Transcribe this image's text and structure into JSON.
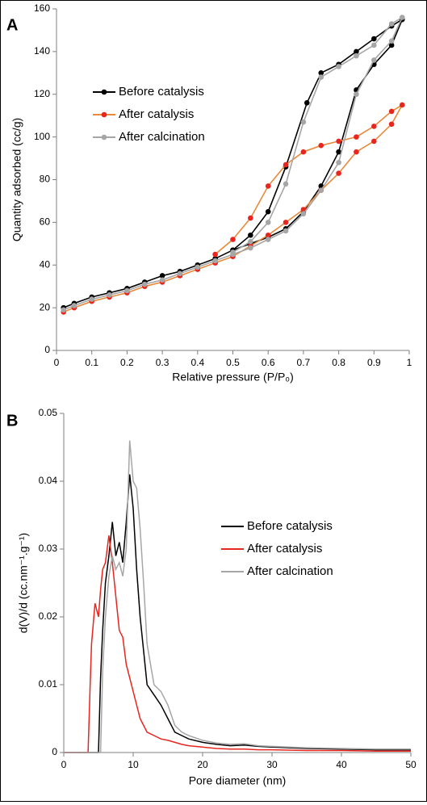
{
  "chart_data": [
    {
      "type": "line",
      "panel_label": "A",
      "xlabel": "Relative pressure (P/P₀)",
      "ylabel": "Quantity adsorbed (cc/g)",
      "xlim": [
        0,
        1
      ],
      "xticks": [
        0,
        0.1,
        0.2,
        0.3,
        0.4,
        0.5,
        0.6,
        0.7,
        0.8,
        0.9,
        1
      ],
      "ylim": [
        0,
        160
      ],
      "yticks": [
        0,
        20,
        40,
        60,
        80,
        100,
        120,
        140,
        160
      ],
      "markers": true,
      "legend": "upper left",
      "series": [
        {
          "name": "Before catalysis",
          "color": "#000000",
          "x": [
            0.02,
            0.05,
            0.1,
            0.15,
            0.2,
            0.25,
            0.3,
            0.35,
            0.4,
            0.45,
            0.5,
            0.55,
            0.6,
            0.65,
            0.7,
            0.75,
            0.8,
            0.85,
            0.9,
            0.95,
            0.98,
            0.95,
            0.9,
            0.85,
            0.8,
            0.75,
            0.71,
            0.65,
            0.6,
            0.55,
            0.5
          ],
          "values": [
            20,
            22,
            25,
            27,
            29,
            32,
            35,
            37,
            40,
            43,
            47,
            50,
            53,
            57,
            65,
            77,
            93,
            122,
            134,
            143,
            155,
            152,
            146,
            140,
            134,
            130,
            116,
            86,
            65,
            54,
            47
          ]
        },
        {
          "name": "After catalysis",
          "color": "#e8251f",
          "line_color": "#e8893a",
          "x": [
            0.02,
            0.05,
            0.1,
            0.15,
            0.2,
            0.25,
            0.3,
            0.35,
            0.4,
            0.45,
            0.5,
            0.55,
            0.6,
            0.65,
            0.7,
            0.75,
            0.8,
            0.85,
            0.9,
            0.95,
            0.98,
            0.95,
            0.9,
            0.85,
            0.8,
            0.75,
            0.7,
            0.65,
            0.6,
            0.55,
            0.5,
            0.45
          ],
          "values": [
            18,
            20,
            23,
            25,
            27,
            30,
            32,
            35,
            38,
            41,
            44,
            49,
            54,
            60,
            66,
            75,
            83,
            93,
            98,
            106,
            115,
            112,
            105,
            100,
            98,
            96,
            93,
            87,
            77,
            62,
            52,
            45
          ]
        },
        {
          "name": "After calcination",
          "color": "#a6a6a6",
          "x": [
            0.02,
            0.05,
            0.1,
            0.15,
            0.2,
            0.25,
            0.3,
            0.35,
            0.4,
            0.45,
            0.5,
            0.55,
            0.6,
            0.65,
            0.7,
            0.75,
            0.8,
            0.85,
            0.9,
            0.95,
            0.98,
            0.95,
            0.9,
            0.85,
            0.8,
            0.75,
            0.7,
            0.65,
            0.6,
            0.55,
            0.5
          ],
          "values": [
            19,
            21,
            24,
            26,
            28,
            31,
            33,
            36,
            39,
            42,
            45,
            48,
            52,
            56,
            64,
            75,
            88,
            120,
            136,
            145,
            156,
            153,
            143,
            138,
            133,
            128,
            107,
            78,
            60,
            51,
            46
          ]
        }
      ]
    },
    {
      "type": "line",
      "panel_label": "B",
      "xlabel": "Pore diameter (nm)",
      "ylabel": "d(V)/d (cc.nm⁻¹.g⁻¹)",
      "xlim": [
        0,
        50
      ],
      "xticks": [
        0,
        10,
        20,
        30,
        40,
        50
      ],
      "ylim": [
        0,
        0.05
      ],
      "yticks": [
        0,
        0.01,
        0.02,
        0.03,
        0.04,
        0.05
      ],
      "markers": false,
      "legend": "center right",
      "series": [
        {
          "name": "Before catalysis",
          "color": "#000000",
          "x": [
            0,
            3.5,
            3.8,
            4,
            4.5,
            5,
            5.3,
            5.6,
            6,
            6.5,
            7,
            7.5,
            8,
            8.5,
            9,
            9.5,
            10,
            10.5,
            11,
            11.5,
            12,
            13,
            14,
            15,
            16,
            17,
            18,
            20,
            22,
            24,
            26,
            28,
            30,
            35,
            40,
            45,
            50
          ],
          "values": [
            0,
            0,
            0,
            0,
            0,
            0,
            0.011,
            0.018,
            0.025,
            0.029,
            0.034,
            0.029,
            0.031,
            0.028,
            0.034,
            0.041,
            0.036,
            0.027,
            0.02,
            0.015,
            0.01,
            0.0085,
            0.007,
            0.005,
            0.003,
            0.0025,
            0.002,
            0.0015,
            0.0012,
            0.001,
            0.0011,
            0.0009,
            0.0008,
            0.0006,
            0.0005,
            0.0004,
            0.0004
          ]
        },
        {
          "name": "After catalysis",
          "color": "#e8251f",
          "x": [
            0,
            3.5,
            3.8,
            4,
            4.5,
            5,
            5.3,
            5.6,
            6,
            6.5,
            7,
            7.5,
            8,
            8.5,
            9,
            9.5,
            10,
            10.5,
            11,
            11.5,
            12,
            13,
            14,
            15,
            16,
            17,
            18,
            20,
            22,
            24,
            26,
            28,
            30,
            35,
            40,
            45,
            50
          ],
          "values": [
            0,
            0,
            0.01,
            0.016,
            0.022,
            0.02,
            0.024,
            0.027,
            0.028,
            0.032,
            0.028,
            0.023,
            0.018,
            0.017,
            0.013,
            0.011,
            0.009,
            0.007,
            0.005,
            0.004,
            0.003,
            0.0025,
            0.002,
            0.0018,
            0.0015,
            0.0012,
            0.001,
            0.0008,
            0.0006,
            0.0005,
            0.0005,
            0.0004,
            0.0004,
            0.0003,
            0.0003,
            0.0002,
            0.0002
          ]
        },
        {
          "name": "After calcination",
          "color": "#a6a6a6",
          "x": [
            0,
            3.5,
            3.8,
            4,
            4.5,
            5,
            5.3,
            5.6,
            6,
            6.5,
            7,
            7.5,
            8,
            8.5,
            9,
            9.5,
            10,
            10.5,
            11,
            11.5,
            12,
            13,
            14,
            15,
            16,
            17,
            18,
            20,
            22,
            24,
            26,
            28,
            30,
            35,
            40,
            45,
            50
          ],
          "values": [
            0,
            0,
            0,
            0,
            0,
            0,
            0,
            0.012,
            0.02,
            0.026,
            0.029,
            0.027,
            0.028,
            0.026,
            0.03,
            0.046,
            0.04,
            0.039,
            0.033,
            0.025,
            0.016,
            0.01,
            0.009,
            0.007,
            0.004,
            0.003,
            0.0025,
            0.0018,
            0.0014,
            0.0012,
            0.0013,
            0.001,
            0.0009,
            0.0007,
            0.0006,
            0.0005,
            0.0005
          ]
        }
      ]
    }
  ]
}
